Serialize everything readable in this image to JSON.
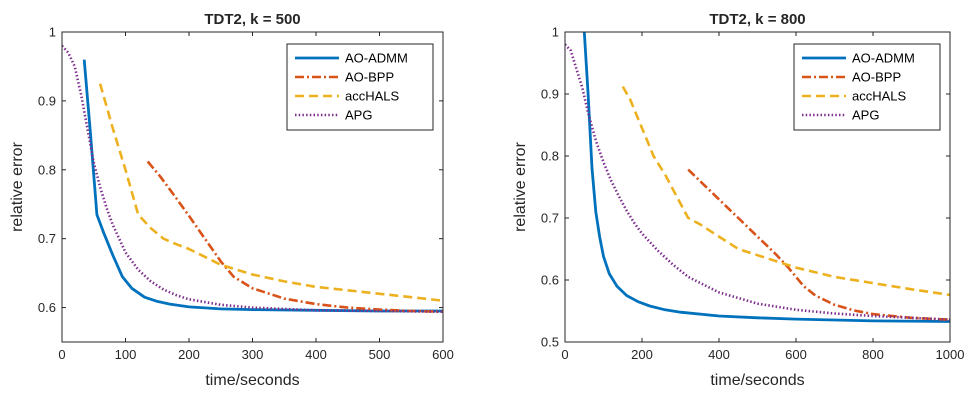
{
  "colors": {
    "AO-ADMM": "#0072BD",
    "AO-BPP": "#D95319",
    "accHALS": "#EDB120",
    "APG": "#7E2F8E"
  },
  "chart_data": [
    {
      "type": "line",
      "title": "TDT2, k = 500",
      "xlabel": "time/seconds",
      "ylabel": "relative error",
      "xlim": [
        0,
        600
      ],
      "ylim": [
        0.55,
        1.0
      ],
      "xticks": [
        0,
        100,
        200,
        300,
        400,
        500,
        600
      ],
      "yticks": [
        0.6,
        0.7,
        0.8,
        0.9,
        1
      ],
      "legend_position": "top-right",
      "series": [
        {
          "name": "AO-ADMM",
          "style": "solid",
          "x": [
            35,
            45,
            55,
            65,
            80,
            95,
            110,
            130,
            150,
            170,
            200,
            250,
            300,
            400,
            500,
            600
          ],
          "y": [
            0.96,
            0.85,
            0.735,
            0.71,
            0.676,
            0.645,
            0.628,
            0.615,
            0.609,
            0.605,
            0.601,
            0.598,
            0.597,
            0.596,
            0.595,
            0.595
          ]
        },
        {
          "name": "AO-BPP",
          "style": "dashdot",
          "x": [
            135,
            155,
            175,
            200,
            225,
            250,
            270,
            300,
            350,
            400,
            450,
            500,
            550,
            600
          ],
          "y": [
            0.812,
            0.79,
            0.765,
            0.733,
            0.7,
            0.667,
            0.645,
            0.628,
            0.613,
            0.605,
            0.6,
            0.597,
            0.595,
            0.594
          ]
        },
        {
          "name": "accHALS",
          "style": "dashed",
          "x": [
            60,
            80,
            100,
            120,
            140,
            160,
            180,
            200,
            250,
            300,
            350,
            400,
            450,
            500,
            550,
            600
          ],
          "y": [
            0.925,
            0.86,
            0.8,
            0.735,
            0.715,
            0.7,
            0.692,
            0.685,
            0.662,
            0.648,
            0.638,
            0.63,
            0.625,
            0.62,
            0.615,
            0.61
          ]
        },
        {
          "name": "APG",
          "style": "dotted",
          "x": [
            0,
            10,
            20,
            30,
            40,
            50,
            60,
            70,
            80,
            100,
            120,
            140,
            160,
            180,
            200,
            250,
            300,
            400,
            500,
            600
          ],
          "y": [
            0.98,
            0.97,
            0.95,
            0.91,
            0.86,
            0.81,
            0.775,
            0.745,
            0.72,
            0.68,
            0.655,
            0.638,
            0.626,
            0.618,
            0.612,
            0.604,
            0.6,
            0.596,
            0.595,
            0.594
          ]
        }
      ]
    },
    {
      "type": "line",
      "title": "TDT2, k = 800",
      "xlabel": "time/seconds",
      "ylabel": "relative error",
      "xlim": [
        0,
        1000
      ],
      "ylim": [
        0.5,
        1.0
      ],
      "xticks": [
        0,
        200,
        400,
        600,
        800,
        1000
      ],
      "yticks": [
        0.5,
        0.6,
        0.7,
        0.8,
        0.9,
        1
      ],
      "legend_position": "top-right",
      "series": [
        {
          "name": "AO-ADMM",
          "style": "solid",
          "x": [
            50,
            60,
            70,
            80,
            90,
            100,
            115,
            135,
            160,
            190,
            220,
            260,
            300,
            400,
            500,
            600,
            800,
            1000
          ],
          "y": [
            1.0,
            0.9,
            0.78,
            0.71,
            0.67,
            0.638,
            0.61,
            0.59,
            0.575,
            0.565,
            0.558,
            0.552,
            0.548,
            0.542,
            0.539,
            0.537,
            0.534,
            0.533
          ]
        },
        {
          "name": "AO-BPP",
          "style": "dashdot",
          "x": [
            320,
            350,
            400,
            450,
            500,
            550,
            580,
            620,
            650,
            700,
            750,
            800,
            900,
            1000
          ],
          "y": [
            0.778,
            0.76,
            0.73,
            0.7,
            0.67,
            0.64,
            0.62,
            0.59,
            0.575,
            0.56,
            0.551,
            0.545,
            0.539,
            0.536
          ]
        },
        {
          "name": "accHALS",
          "style": "dashed",
          "x": [
            150,
            170,
            190,
            210,
            230,
            260,
            290,
            320,
            350,
            400,
            450,
            500,
            550,
            600,
            700,
            800,
            900,
            1000
          ],
          "y": [
            0.912,
            0.89,
            0.86,
            0.83,
            0.8,
            0.77,
            0.735,
            0.7,
            0.69,
            0.67,
            0.65,
            0.64,
            0.63,
            0.62,
            0.605,
            0.595,
            0.585,
            0.576
          ]
        },
        {
          "name": "APG",
          "style": "dotted",
          "x": [
            0,
            15,
            30,
            45,
            60,
            80,
            100,
            120,
            140,
            160,
            180,
            200,
            240,
            280,
            320,
            400,
            500,
            600,
            700,
            800,
            900,
            1000
          ],
          "y": [
            0.98,
            0.97,
            0.94,
            0.91,
            0.87,
            0.825,
            0.79,
            0.76,
            0.735,
            0.712,
            0.692,
            0.675,
            0.648,
            0.625,
            0.605,
            0.58,
            0.562,
            0.552,
            0.546,
            0.542,
            0.539,
            0.536
          ]
        }
      ]
    }
  ]
}
